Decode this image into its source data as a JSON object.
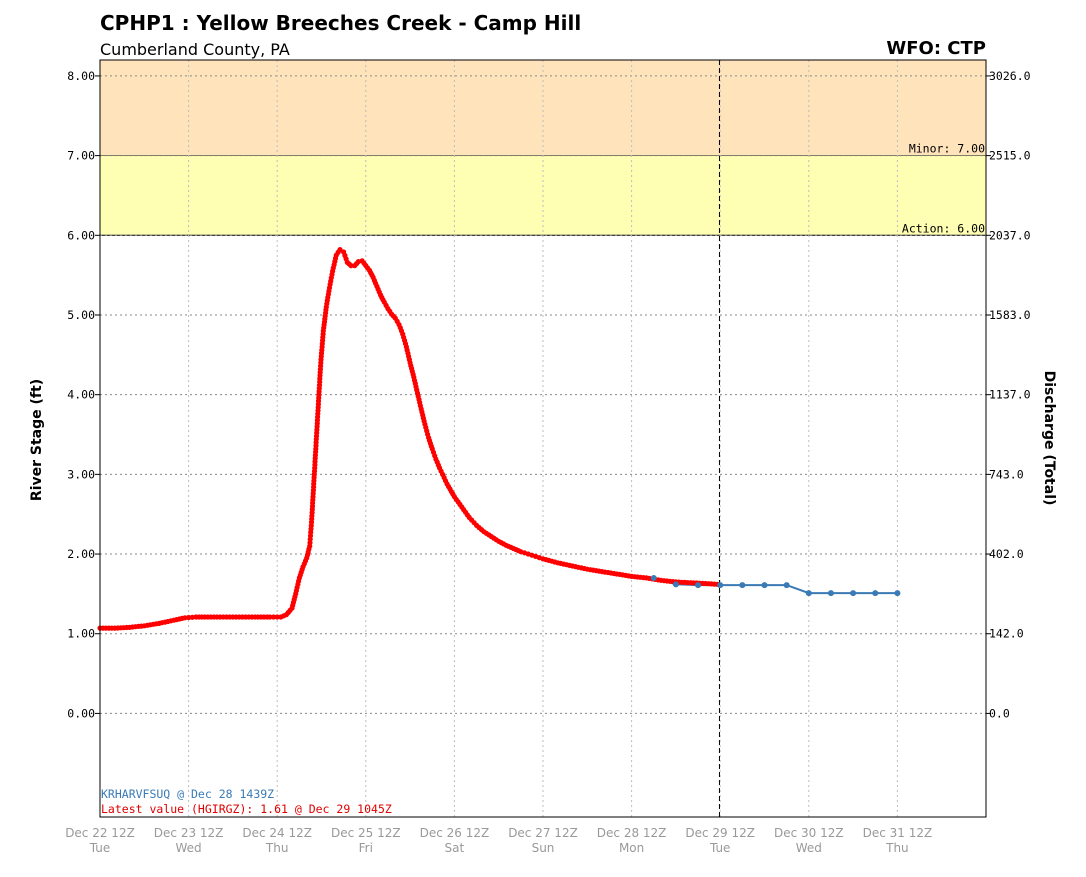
{
  "chart_data": {
    "type": "line",
    "title": "CPHP1 : Yellow Breeches Creek - Camp Hill",
    "subtitle": "Cumberland County, PA",
    "wfo": "WFO: CTP",
    "ylabel": "River Stage (ft)",
    "ylabel_right": "Discharge (Total)",
    "ylim": [
      -1.3,
      8.2
    ],
    "xlim_hours": [
      0,
      240
    ],
    "y_ticks": [
      {
        "value": 0,
        "label": "0.00",
        "right": "0.0"
      },
      {
        "value": 1,
        "label": "1.00",
        "right": "142.0"
      },
      {
        "value": 2,
        "label": "2.00",
        "right": "402.0"
      },
      {
        "value": 3,
        "label": "3.00",
        "right": "743.0"
      },
      {
        "value": 4,
        "label": "4.00",
        "right": "1137.0"
      },
      {
        "value": 5,
        "label": "5.00",
        "right": "1583.0"
      },
      {
        "value": 6,
        "label": "6.00",
        "right": "2037.0"
      },
      {
        "value": 7,
        "label": "7.00",
        "right": "2515.0"
      },
      {
        "value": 8,
        "label": "8.00",
        "right": "3026.0"
      }
    ],
    "x_ticks": [
      {
        "hour": 0,
        "label": "Dec 22 12Z",
        "day": "Tue"
      },
      {
        "hour": 24,
        "label": "Dec 23 12Z",
        "day": "Wed"
      },
      {
        "hour": 48,
        "label": "Dec 24 12Z",
        "day": "Thu"
      },
      {
        "hour": 72,
        "label": "Dec 25 12Z",
        "day": "Fri"
      },
      {
        "hour": 96,
        "label": "Dec 26 12Z",
        "day": "Sat"
      },
      {
        "hour": 120,
        "label": "Dec 27 12Z",
        "day": "Sun"
      },
      {
        "hour": 144,
        "label": "Dec 28 12Z",
        "day": "Mon"
      },
      {
        "hour": 168,
        "label": "Dec 29 12Z",
        "day": "Tue"
      },
      {
        "hour": 192,
        "label": "Dec 30 12Z",
        "day": "Wed"
      },
      {
        "hour": 216,
        "label": "Dec 31 12Z",
        "day": "Thu"
      }
    ],
    "flood_levels": [
      {
        "name": "Minor",
        "label": "Minor: 7.00",
        "value": 7.0,
        "upper": 8.2,
        "color": "#ffe4bb"
      },
      {
        "name": "Action",
        "label": "Action: 6.00",
        "value": 6.0,
        "upper": 7.0,
        "color": "#ffffb3"
      }
    ],
    "current_time_hour": 167.8,
    "series": [
      {
        "name": "Observed",
        "color": "#ff0000",
        "points": [
          [
            0,
            1.07
          ],
          [
            4,
            1.07
          ],
          [
            8,
            1.08
          ],
          [
            12,
            1.1
          ],
          [
            16,
            1.13
          ],
          [
            20,
            1.17
          ],
          [
            23,
            1.2
          ],
          [
            26,
            1.21
          ],
          [
            30,
            1.21
          ],
          [
            36,
            1.21
          ],
          [
            42,
            1.21
          ],
          [
            46,
            1.21
          ],
          [
            49,
            1.21
          ],
          [
            50.5,
            1.24
          ],
          [
            52,
            1.32
          ],
          [
            53,
            1.5
          ],
          [
            54,
            1.7
          ],
          [
            55,
            1.84
          ],
          [
            56,
            1.95
          ],
          [
            56.8,
            2.1
          ],
          [
            57.3,
            2.4
          ],
          [
            57.8,
            2.8
          ],
          [
            58.3,
            3.2
          ],
          [
            58.8,
            3.6
          ],
          [
            59.3,
            4.0
          ],
          [
            59.8,
            4.4
          ],
          [
            60.5,
            4.8
          ],
          [
            61.3,
            5.1
          ],
          [
            62,
            5.3
          ],
          [
            63,
            5.55
          ],
          [
            64,
            5.75
          ],
          [
            65,
            5.82
          ],
          [
            66,
            5.79
          ],
          [
            67,
            5.66
          ],
          [
            68,
            5.62
          ],
          [
            69,
            5.62
          ],
          [
            70,
            5.67
          ],
          [
            71,
            5.68
          ],
          [
            72,
            5.62
          ],
          [
            73,
            5.56
          ],
          [
            74,
            5.47
          ],
          [
            75,
            5.36
          ],
          [
            76,
            5.25
          ],
          [
            77,
            5.16
          ],
          [
            78,
            5.08
          ],
          [
            79,
            5.01
          ],
          [
            80,
            4.96
          ],
          [
            81,
            4.88
          ],
          [
            82,
            4.76
          ],
          [
            83,
            4.6
          ],
          [
            84,
            4.4
          ],
          [
            85,
            4.22
          ],
          [
            86,
            4.02
          ],
          [
            87,
            3.82
          ],
          [
            88,
            3.63
          ],
          [
            89,
            3.46
          ],
          [
            90,
            3.32
          ],
          [
            91,
            3.19
          ],
          [
            92,
            3.08
          ],
          [
            94,
            2.88
          ],
          [
            96,
            2.72
          ],
          [
            98,
            2.59
          ],
          [
            100,
            2.46
          ],
          [
            102,
            2.36
          ],
          [
            104,
            2.28
          ],
          [
            106,
            2.22
          ],
          [
            108,
            2.16
          ],
          [
            110,
            2.11
          ],
          [
            112,
            2.07
          ],
          [
            114,
            2.03
          ],
          [
            116,
            2.0
          ],
          [
            118,
            1.97
          ],
          [
            120,
            1.94
          ],
          [
            124,
            1.89
          ],
          [
            128,
            1.85
          ],
          [
            132,
            1.81
          ],
          [
            136,
            1.78
          ],
          [
            140,
            1.75
          ],
          [
            144,
            1.72
          ],
          [
            148,
            1.7
          ],
          [
            152,
            1.67
          ],
          [
            156,
            1.65
          ],
          [
            160,
            1.64
          ],
          [
            164,
            1.63
          ],
          [
            167.2,
            1.62
          ]
        ]
      },
      {
        "name": "Forecast",
        "color": "#3a7ab5",
        "points": [
          [
            150,
            1.7
          ],
          [
            156,
            1.62
          ],
          [
            162,
            1.61
          ],
          [
            168,
            1.61
          ],
          [
            174,
            1.61
          ],
          [
            180,
            1.61
          ],
          [
            186,
            1.61
          ],
          [
            192,
            1.51
          ],
          [
            198,
            1.51
          ],
          [
            204,
            1.51
          ],
          [
            210,
            1.51
          ],
          [
            216,
            1.51
          ]
        ]
      }
    ]
  },
  "notes": {
    "forecast_issuance": "KRHARVFSUQ @ Dec 28 1439Z",
    "latest_value": "Latest value (HGIRGZ): 1.61 @ Dec 29 1045Z"
  }
}
